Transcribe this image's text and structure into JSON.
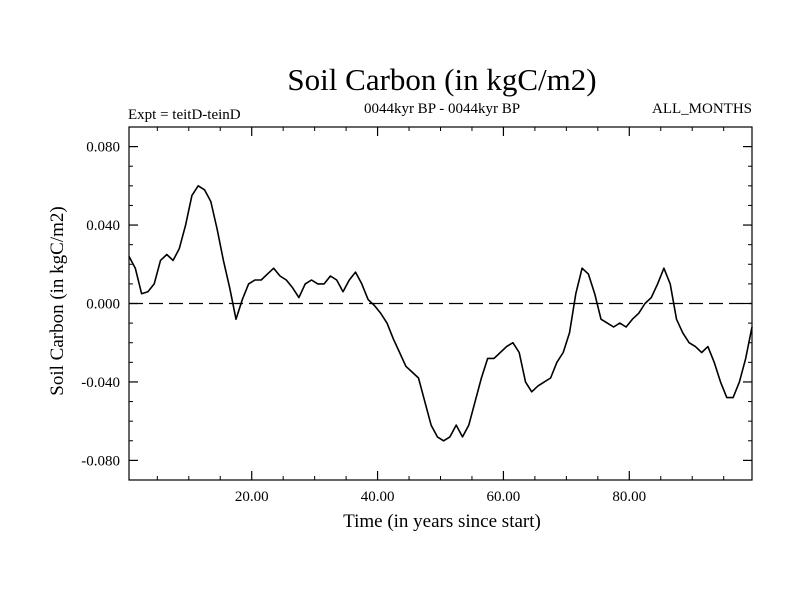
{
  "chart_data": {
    "type": "line",
    "title": "Soil Carbon (in kgC/m2)",
    "subtitle_left": "Expt = teitD-teinD",
    "subtitle_center": "0044kyr BP - 0044kyr BP",
    "subtitle_right": "ALL_MONTHS",
    "xlabel": "Time (in years since start)",
    "ylabel": "Soil Carbon (in kgC/m2)",
    "xlim": [
      0.5,
      99.5
    ],
    "ylim": [
      -0.09,
      0.09
    ],
    "x_ticks": [
      20,
      40,
      60,
      80
    ],
    "x_tick_labels": [
      "20.00",
      "40.00",
      "60.00",
      "80.00"
    ],
    "y_ticks": [
      0.08,
      0.04,
      0.0,
      -0.04,
      -0.08
    ],
    "y_tick_labels": [
      "0.080",
      "0.040",
      "0.000",
      "-0.040",
      "-0.080"
    ],
    "reference_line": 0.0,
    "grid": false,
    "series": [
      {
        "x": [
          0.5,
          1.5,
          2.5,
          3.5,
          4.5,
          5.5,
          6.5,
          7.5,
          8.5,
          9.5,
          10.5,
          11.5,
          12.5,
          13.5,
          14.5,
          15.5,
          16.5,
          17.5,
          18.5,
          19.5,
          20.5,
          21.5,
          22.5,
          23.5,
          24.5,
          25.5,
          26.5,
          27.5,
          28.5,
          29.5,
          30.5,
          31.5,
          32.5,
          33.5,
          34.5,
          35.5,
          36.5,
          37.5,
          38.5,
          39.5,
          40.5,
          41.5,
          42.5,
          43.5,
          44.5,
          45.5,
          46.5,
          47.5,
          48.5,
          49.5,
          50.5,
          51.5,
          52.5,
          53.5,
          54.5,
          55.5,
          56.5,
          57.5,
          58.5,
          59.5,
          60.5,
          61.5,
          62.5,
          63.5,
          64.5,
          65.5,
          66.5,
          67.5,
          68.5,
          69.5,
          70.5,
          71.5,
          72.5,
          73.5,
          74.5,
          75.5,
          76.5,
          77.5,
          78.5,
          79.5,
          80.5,
          81.5,
          82.5,
          83.5,
          84.5,
          85.5,
          86.5,
          87.5,
          88.5,
          89.5,
          90.5,
          91.5,
          92.5,
          93.5,
          94.5,
          95.5,
          96.5,
          97.5,
          98.5,
          99.5
        ],
        "values": [
          0.024,
          0.018,
          0.005,
          0.006,
          0.01,
          0.022,
          0.025,
          0.022,
          0.028,
          0.04,
          0.055,
          0.06,
          0.058,
          0.052,
          0.038,
          0.022,
          0.008,
          -0.008,
          0.002,
          0.01,
          0.012,
          0.012,
          0.015,
          0.018,
          0.014,
          0.012,
          0.008,
          0.003,
          0.01,
          0.012,
          0.01,
          0.01,
          0.014,
          0.012,
          0.006,
          0.012,
          0.016,
          0.01,
          0.002,
          -0.001,
          -0.005,
          -0.01,
          -0.018,
          -0.025,
          -0.032,
          -0.035,
          -0.038,
          -0.05,
          -0.062,
          -0.068,
          -0.07,
          -0.068,
          -0.062,
          -0.068,
          -0.062,
          -0.05,
          -0.038,
          -0.028,
          -0.028,
          -0.025,
          -0.022,
          -0.02,
          -0.025,
          -0.04,
          -0.045,
          -0.042,
          -0.04,
          -0.038,
          -0.03,
          -0.025,
          -0.015,
          0.005,
          0.018,
          0.015,
          0.005,
          -0.008,
          -0.01,
          -0.012,
          -0.01,
          -0.012,
          -0.008,
          -0.005,
          0.0,
          0.003,
          0.01,
          0.018,
          0.01,
          -0.008,
          -0.015,
          -0.02,
          -0.022,
          -0.025,
          -0.022,
          -0.03,
          -0.04,
          -0.048,
          -0.048,
          -0.04,
          -0.028,
          -0.012
        ]
      }
    ]
  }
}
